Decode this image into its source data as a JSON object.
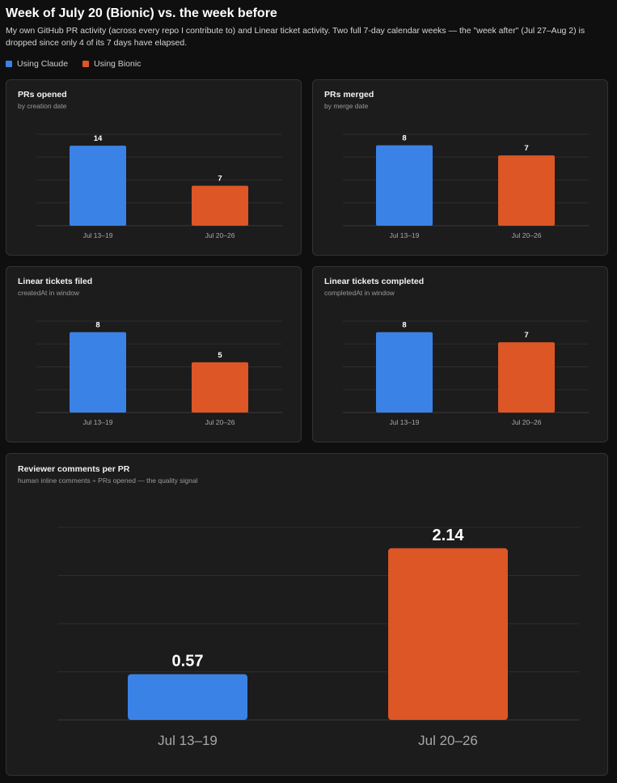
{
  "header": {
    "title": "Week of July 20 (Bionic) vs. the week before",
    "subtitle": "My own GitHub PR activity (across every repo I contribute to) and Linear ticket activity. Two full 7-day calendar weeks — the \"week after\" (Jul 27–Aug 2) is dropped since only 4 of its 7 days have elapsed."
  },
  "legend": [
    {
      "label": "Using Claude",
      "color": "#3b82e6"
    },
    {
      "label": "Using Bionic",
      "color": "#dc5626"
    }
  ],
  "chart_data": [
    {
      "type": "bar",
      "title": "PRs opened",
      "subtitle": "by creation date",
      "categories": [
        "Jul 13–19",
        "Jul 20–26"
      ],
      "values": [
        14,
        7
      ],
      "colors": [
        "#3b82e6",
        "#dc5626"
      ],
      "ylim": [
        0,
        16
      ],
      "grid": true
    },
    {
      "type": "bar",
      "title": "PRs merged",
      "subtitle": "by merge date",
      "categories": [
        "Jul 13–19",
        "Jul 20–26"
      ],
      "values": [
        8,
        7
      ],
      "colors": [
        "#3b82e6",
        "#dc5626"
      ],
      "ylim": [
        0,
        9.1
      ],
      "grid": true
    },
    {
      "type": "bar",
      "title": "Linear tickets filed",
      "subtitle": "createdAt in window",
      "categories": [
        "Jul 13–19",
        "Jul 20–26"
      ],
      "values": [
        8,
        5
      ],
      "colors": [
        "#3b82e6",
        "#dc5626"
      ],
      "ylim": [
        0,
        9.1
      ],
      "grid": true
    },
    {
      "type": "bar",
      "title": "Linear tickets completed",
      "subtitle": "completedAt in window",
      "categories": [
        "Jul 13–19",
        "Jul 20–26"
      ],
      "values": [
        8,
        7
      ],
      "colors": [
        "#3b82e6",
        "#dc5626"
      ],
      "ylim": [
        0,
        9.1
      ],
      "grid": true
    },
    {
      "type": "bar",
      "title": "Reviewer comments per PR",
      "subtitle": "human inline comments ÷ PRs opened — the quality signal",
      "categories": [
        "Jul 13–19",
        "Jul 20–26"
      ],
      "values": [
        0.57,
        2.14
      ],
      "value_labels": [
        "0.57",
        "2.14"
      ],
      "colors": [
        "#3b82e6",
        "#dc5626"
      ],
      "ylim": [
        0,
        2.4
      ],
      "grid": true
    }
  ]
}
